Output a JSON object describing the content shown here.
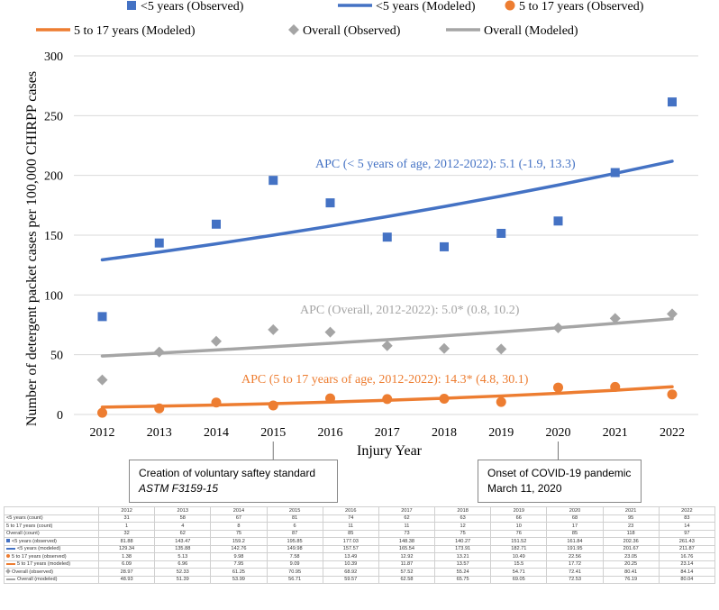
{
  "chart_data": {
    "type": "scatter+line",
    "ylabel": "Number of detergent packet cases per 100,000 CHIRPP cases",
    "xlabel": "Injury Year",
    "x": [
      2012,
      2013,
      2014,
      2015,
      2016,
      2017,
      2018,
      2019,
      2020,
      2021,
      2022
    ],
    "ylim": [
      0,
      300
    ],
    "yticks": [
      0,
      50,
      100,
      150,
      200,
      250,
      300
    ],
    "grid": "horizontal",
    "legend_position": "top",
    "series": [
      {
        "name": "<5 years (Observed)",
        "kind": "marker",
        "marker": "square",
        "color": "#4472C4",
        "values": [
          81.88,
          143.47,
          159.2,
          195.85,
          177.03,
          148.38,
          140.27,
          151.52,
          161.84,
          202.36,
          261.43
        ]
      },
      {
        "name": "<5 years (Modeled)",
        "kind": "line",
        "color": "#4472C4",
        "values": [
          129.34,
          135.88,
          142.76,
          149.98,
          157.57,
          165.54,
          173.91,
          182.71,
          191.95,
          201.67,
          211.87
        ]
      },
      {
        "name": "5 to 17 years (Observed)",
        "kind": "marker",
        "marker": "circle",
        "color": "#ED7D31",
        "values": [
          1.38,
          5.13,
          9.98,
          7.58,
          13.49,
          12.92,
          13.21,
          10.49,
          22.56,
          23.05,
          16.76
        ]
      },
      {
        "name": "5 to 17 years (Modeled)",
        "kind": "line",
        "color": "#ED7D31",
        "values": [
          6.09,
          6.96,
          7.95,
          9.09,
          10.39,
          11.87,
          13.57,
          15.5,
          17.72,
          20.25,
          23.14
        ]
      },
      {
        "name": "Overall (Observed)",
        "kind": "marker",
        "marker": "diamond",
        "color": "#A5A5A5",
        "values": [
          28.97,
          52.33,
          61.25,
          70.95,
          68.92,
          57.52,
          55.24,
          54.71,
          72.41,
          80.41,
          84.14
        ]
      },
      {
        "name": "Overall (Modeled)",
        "kind": "line",
        "color": "#A5A5A5",
        "values": [
          48.93,
          51.39,
          53.99,
          56.71,
          59.57,
          62.58,
          65.75,
          69.05,
          72.53,
          76.19,
          80.04
        ]
      }
    ],
    "annotations": [
      {
        "text": "APC (< 5 years of age, 2012-2022): 5.1 (-1.9, 13.3)",
        "color": "#4472C4"
      },
      {
        "text": "APC (Overall, 2012-2022): 5.0* (0.8, 10.2)",
        "color": "#A5A5A5"
      },
      {
        "text": "APC (5 to 17 years of age, 2012-2022): 14.3* (4.8, 30.1)",
        "color": "#ED7D31"
      }
    ]
  },
  "callouts": {
    "standard": {
      "line1": "Creation of voluntary saftey standard",
      "line2": "ASTM F3159-15",
      "year": 2015
    },
    "covid": {
      "line1": "Onset of COVID-19 pandemic",
      "line2": "March 11, 2020",
      "year": 2020
    }
  },
  "table": {
    "header": [
      "",
      "2012",
      "2013",
      "2014",
      "2015",
      "2016",
      "2017",
      "2018",
      "2019",
      "2020",
      "2021",
      "2022"
    ],
    "rows": [
      {
        "label": "<5 years (count)",
        "marker": "",
        "cells": [
          "31",
          "58",
          "67",
          "81",
          "74",
          "62",
          "63",
          "66",
          "68",
          "95",
          "83"
        ]
      },
      {
        "label": "5 to 17 years (count)",
        "marker": "",
        "cells": [
          "1",
          "4",
          "8",
          "6",
          "11",
          "11",
          "12",
          "10",
          "17",
          "23",
          "14"
        ]
      },
      {
        "label": "Overall (count)",
        "marker": "",
        "cells": [
          "32",
          "62",
          "75",
          "87",
          "85",
          "73",
          "75",
          "76",
          "85",
          "118",
          "97"
        ]
      },
      {
        "label": "<5 years (observed)",
        "marker": "square-blue",
        "cells": [
          "81.88",
          "143.47",
          "159.2",
          "195.85",
          "177.03",
          "148.38",
          "140.27",
          "151.52",
          "161.84",
          "202.36",
          "261.43"
        ]
      },
      {
        "label": "<5 years (modeled)",
        "marker": "line-blue",
        "cells": [
          "129.34",
          "135.88",
          "142.76",
          "149.98",
          "157.57",
          "165.54",
          "173.91",
          "182.71",
          "191.95",
          "201.67",
          "211.87"
        ]
      },
      {
        "label": "5 to 17 years (observed)",
        "marker": "circle-orange",
        "cells": [
          "1.38",
          "5.13",
          "9.98",
          "7.58",
          "13.49",
          "12.92",
          "13.21",
          "10.49",
          "22.56",
          "23.05",
          "16.76"
        ]
      },
      {
        "label": "5 to 17 years (modeled)",
        "marker": "line-orange",
        "cells": [
          "6.09",
          "6.96",
          "7.95",
          "9.09",
          "10.39",
          "11.87",
          "13.57",
          "15.5",
          "17.72",
          "20.25",
          "23.14"
        ]
      },
      {
        "label": "Overall (observed)",
        "marker": "diamond-gray",
        "cells": [
          "28.97",
          "52.33",
          "61.25",
          "70.95",
          "68.92",
          "57.52",
          "55.24",
          "54.71",
          "72.41",
          "80.41",
          "84.14"
        ]
      },
      {
        "label": "Overall (modeled)",
        "marker": "line-gray",
        "cells": [
          "48.93",
          "51.39",
          "53.99",
          "56.71",
          "59.57",
          "62.58",
          "65.75",
          "69.05",
          "72.53",
          "76.19",
          "80.04"
        ]
      }
    ]
  }
}
